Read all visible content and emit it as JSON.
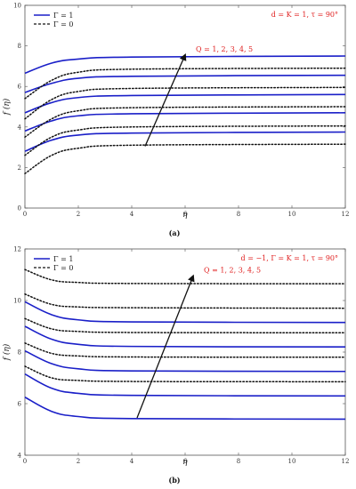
{
  "chart_data": [
    {
      "type": "line",
      "caption": "(a)",
      "xlabel": "η",
      "ylabel": "f (η)",
      "xlim": [
        0,
        12
      ],
      "ylim": [
        0,
        10
      ],
      "xticks": [
        "0",
        "2",
        "4",
        "6",
        "8",
        "10",
        "12"
      ],
      "yticks": [
        "0",
        "2",
        "4",
        "6",
        "8",
        "10"
      ],
      "legend": [
        {
          "label": "Γ = 1",
          "style": "solid",
          "color": "#1a1fc8"
        },
        {
          "label": "Γ = 0",
          "style": "dotted",
          "color": "#111111"
        }
      ],
      "params_text": "d = K = 1, τ = 90°",
      "trend_text": "Q = 1, 2, 3, 4, 5",
      "trend_arrow": {
        "from": [
          4.5,
          3.05
        ],
        "to": [
          6.0,
          7.55
        ]
      },
      "series": [
        {
          "group": "Γ = 1",
          "x": [
            0,
            1,
            2,
            4,
            12
          ],
          "y": [
            2.8,
            3.35,
            3.6,
            3.7,
            3.75
          ]
        },
        {
          "group": "Γ = 1",
          "x": [
            0,
            1,
            2,
            4,
            12
          ],
          "y": [
            3.8,
            4.3,
            4.55,
            4.65,
            4.7
          ]
        },
        {
          "group": "Γ = 1",
          "x": [
            0,
            1,
            2,
            4,
            12
          ],
          "y": [
            4.7,
            5.2,
            5.45,
            5.55,
            5.6
          ]
        },
        {
          "group": "Γ = 1",
          "x": [
            0,
            1,
            2,
            4,
            12
          ],
          "y": [
            5.7,
            6.15,
            6.4,
            6.5,
            6.55
          ]
        },
        {
          "group": "Γ = 1",
          "x": [
            0,
            1,
            2,
            4,
            12
          ],
          "y": [
            6.65,
            7.15,
            7.35,
            7.45,
            7.5
          ]
        },
        {
          "group": "Γ = 0",
          "x": [
            0,
            1,
            2,
            4,
            12
          ],
          "y": [
            1.7,
            2.6,
            2.95,
            3.1,
            3.15
          ]
        },
        {
          "group": "Γ = 0",
          "x": [
            0,
            1,
            2,
            4,
            12
          ],
          "y": [
            2.6,
            3.5,
            3.85,
            4.0,
            4.05
          ]
        },
        {
          "group": "Γ = 0",
          "x": [
            0,
            1,
            2,
            4,
            12
          ],
          "y": [
            3.5,
            4.4,
            4.8,
            4.95,
            5.0
          ]
        },
        {
          "group": "Γ = 0",
          "x": [
            0,
            1,
            2,
            4,
            12
          ],
          "y": [
            4.4,
            5.35,
            5.75,
            5.9,
            5.95
          ]
        },
        {
          "group": "Γ = 0",
          "x": [
            0,
            1,
            2,
            4,
            12
          ],
          "y": [
            5.4,
            6.3,
            6.7,
            6.85,
            6.9
          ]
        }
      ]
    },
    {
      "type": "line",
      "caption": "(b)",
      "xlabel": "η",
      "ylabel": "f (η)",
      "xlim": [
        0,
        12
      ],
      "ylim": [
        4,
        12
      ],
      "xticks": [
        "0",
        "2",
        "4",
        "6",
        "8",
        "10",
        "12"
      ],
      "yticks": [
        "4",
        "6",
        "8",
        "10",
        "12"
      ],
      "legend": [
        {
          "label": "Γ = 1",
          "style": "solid",
          "color": "#1a1fc8"
        },
        {
          "label": "Γ = 0",
          "style": "dotted",
          "color": "#111111"
        }
      ],
      "params_text": "d = −1, Γ = K = 1, τ = 90°",
      "trend_text": "Q = 1, 2, 3, 4, 5",
      "trend_arrow": {
        "from": [
          4.2,
          5.45
        ],
        "to": [
          6.3,
          10.95
        ]
      },
      "series": [
        {
          "group": "Γ = 1",
          "x": [
            0,
            1,
            2,
            4,
            12
          ],
          "y": [
            6.25,
            5.7,
            5.5,
            5.42,
            5.4
          ]
        },
        {
          "group": "Γ = 1",
          "x": [
            0,
            1,
            2,
            4,
            12
          ],
          "y": [
            7.15,
            6.6,
            6.4,
            6.32,
            6.3
          ]
        },
        {
          "group": "Γ = 1",
          "x": [
            0,
            1,
            2,
            4,
            12
          ],
          "y": [
            8.05,
            7.55,
            7.35,
            7.27,
            7.25
          ]
        },
        {
          "group": "Γ = 1",
          "x": [
            0,
            1,
            2,
            4,
            12
          ],
          "y": [
            9.0,
            8.5,
            8.3,
            8.22,
            8.2
          ]
        },
        {
          "group": "Γ = 1",
          "x": [
            0,
            1,
            2,
            4,
            12
          ],
          "y": [
            9.95,
            9.45,
            9.25,
            9.17,
            9.15
          ]
        },
        {
          "group": "Γ = 0",
          "x": [
            0,
            1,
            2,
            4,
            12
          ],
          "y": [
            7.45,
            7.0,
            6.9,
            6.86,
            6.85
          ]
        },
        {
          "group": "Γ = 0",
          "x": [
            0,
            1,
            2,
            4,
            12
          ],
          "y": [
            8.35,
            7.95,
            7.85,
            7.81,
            7.8
          ]
        },
        {
          "group": "Γ = 0",
          "x": [
            0,
            1,
            2,
            4,
            12
          ],
          "y": [
            9.3,
            8.9,
            8.8,
            8.76,
            8.75
          ]
        },
        {
          "group": "Γ = 0",
          "x": [
            0,
            1,
            2,
            4,
            12
          ],
          "y": [
            10.25,
            9.85,
            9.75,
            9.72,
            9.7
          ]
        },
        {
          "group": "Γ = 0",
          "x": [
            0,
            1,
            2,
            4,
            12
          ],
          "y": [
            11.2,
            10.8,
            10.7,
            10.66,
            10.65
          ]
        }
      ]
    }
  ]
}
